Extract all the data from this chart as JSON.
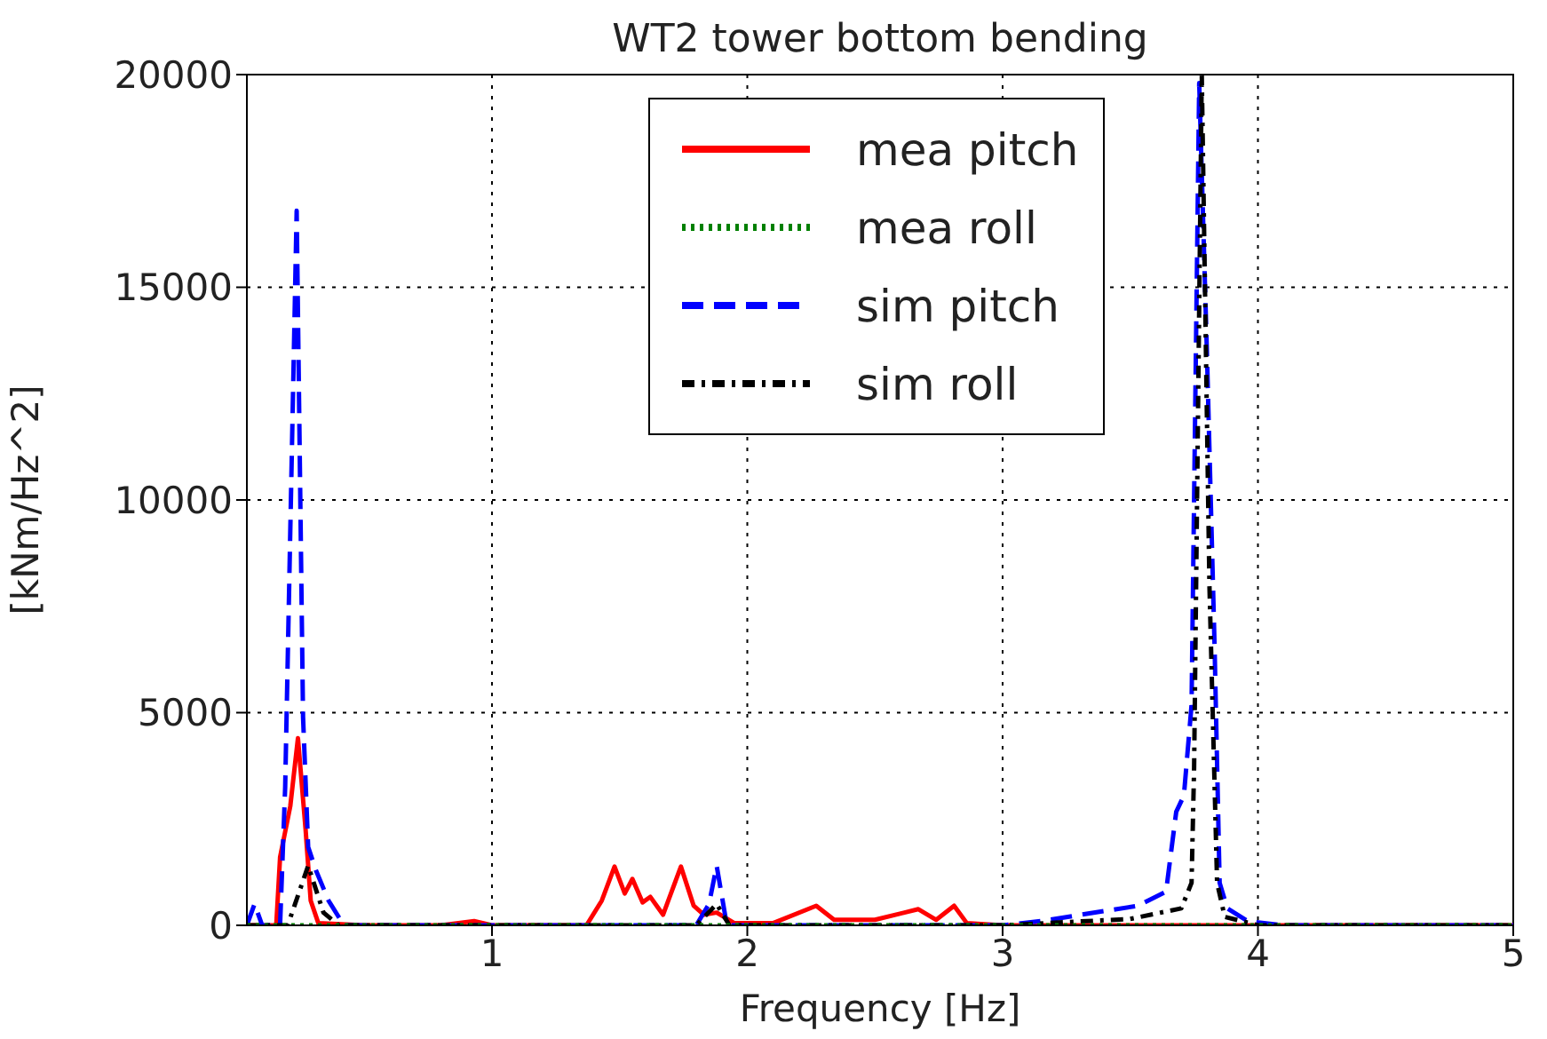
{
  "chart_data": {
    "type": "line",
    "title": "WT2 tower bottom bending",
    "xlabel": "Frequency [Hz]",
    "ylabel": "[kNm/Hz^2]",
    "xlim": [
      0.04,
      5
    ],
    "xticks": [
      1,
      2,
      3,
      4,
      5
    ],
    "ylim": [
      0,
      20000
    ],
    "yticks": [
      0,
      5000,
      10000,
      15000,
      20000
    ],
    "grid": true,
    "legend": "top",
    "marker": "none",
    "series": [
      {
        "name": "mea pitch",
        "color": "#ff0000",
        "line_style": "solid",
        "x": [
          0.04,
          0.1,
          0.155,
          0.17,
          0.21,
          0.24,
          0.27,
          0.29,
          0.32,
          0.5,
          0.8,
          0.93,
          1.0,
          1.3,
          1.37,
          1.43,
          1.48,
          1.52,
          1.55,
          1.59,
          1.62,
          1.67,
          1.74,
          1.79,
          1.83,
          1.88,
          1.95,
          2.1,
          2.27,
          2.34,
          2.5,
          2.67,
          2.74,
          2.81,
          2.86,
          3.0,
          4.0,
          5.0
        ],
        "values": [
          0,
          0,
          0,
          1600,
          2800,
          4400,
          2250,
          580,
          50,
          0,
          0,
          100,
          0,
          0,
          0,
          580,
          1380,
          750,
          1090,
          540,
          670,
          250,
          1380,
          460,
          250,
          300,
          50,
          50,
          460,
          130,
          130,
          380,
          130,
          460,
          50,
          0,
          0,
          0
        ]
      },
      {
        "name": "mea roll",
        "color": "#008000",
        "line_style": "dotted",
        "x": [
          0.04,
          0.5,
          1.0,
          1.5,
          2.0,
          2.5,
          3.0,
          3.5,
          4.0,
          4.5,
          5.0
        ],
        "values": [
          0,
          0,
          0,
          0,
          0,
          0,
          0,
          0,
          0,
          0,
          0
        ]
      },
      {
        "name": "sim pitch",
        "color": "#0000ff",
        "line_style": "dashed",
        "x": [
          0.04,
          0.07,
          0.1,
          0.17,
          0.19,
          0.235,
          0.26,
          0.28,
          0.31,
          0.36,
          0.42,
          1.0,
          1.8,
          1.85,
          1.88,
          1.92,
          2.0,
          3.0,
          3.15,
          3.53,
          3.64,
          3.68,
          3.71,
          3.74,
          3.77,
          3.8,
          3.83,
          3.85,
          3.88,
          3.96,
          4.1,
          5.0
        ],
        "values": [
          0,
          500,
          0,
          0,
          3250,
          16800,
          4900,
          1840,
          1300,
          580,
          0,
          0,
          0,
          500,
          1400,
          0,
          0,
          0,
          100,
          460,
          790,
          2670,
          3050,
          5180,
          19800,
          13500,
          6600,
          1000,
          400,
          100,
          0,
          0
        ]
      },
      {
        "name": "sim roll",
        "color": "#000000",
        "line_style": "dashdot",
        "x": [
          0.04,
          0.2,
          0.28,
          0.34,
          0.4,
          1.8,
          1.88,
          1.93,
          3.0,
          3.5,
          3.7,
          3.74,
          3.75,
          3.78,
          3.81,
          3.84,
          3.87,
          4.0,
          5.0
        ],
        "values": [
          0,
          0,
          1400,
          300,
          0,
          0,
          500,
          0,
          0,
          150,
          400,
          1000,
          3700,
          20000,
          8000,
          1000,
          200,
          0,
          0
        ]
      }
    ]
  }
}
